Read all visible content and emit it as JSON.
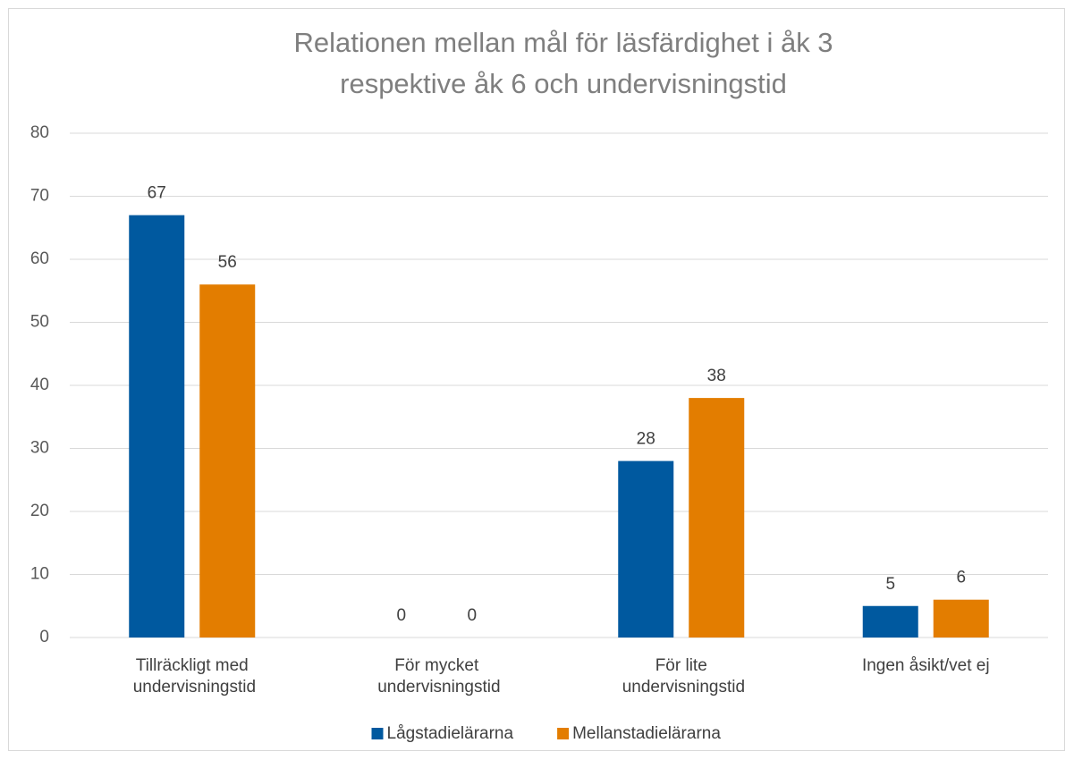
{
  "chart_data": {
    "type": "bar",
    "title": [
      "Relationen mellan mål för läsfärdighet i åk 3",
      "respektive åk 6  och undervisningstid"
    ],
    "categories": [
      "Tillräckligt med undervisningstid",
      "För mycket undervisningstid",
      "För lite undervisningstid",
      "Ingen åsikt/vet ej"
    ],
    "series": [
      {
        "name": "Lågstadielärarna",
        "color": "#00599f",
        "values": [
          67,
          0,
          28,
          5
        ]
      },
      {
        "name": "Mellanstadielärarna",
        "color": "#e37d00",
        "values": [
          56,
          0,
          38,
          6
        ]
      }
    ],
    "ylim": [
      0,
      80
    ],
    "yticks": [
      0,
      10,
      20,
      30,
      40,
      50,
      60,
      70,
      80
    ],
    "grid": true,
    "legend": "bottom"
  }
}
